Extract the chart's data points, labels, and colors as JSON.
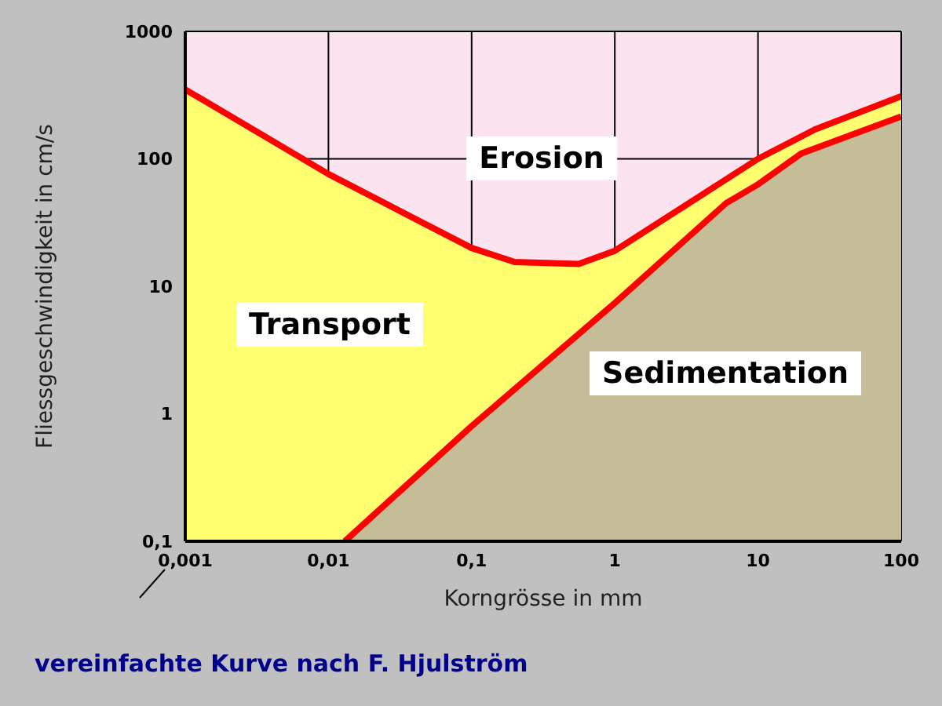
{
  "chart_data": {
    "type": "area",
    "xlabel": "Korngrösse in mm",
    "ylabel": "Fliessgeschwindigkeit in cm/s",
    "series": [
      {
        "color": "#ff0000",
        "x": [
          0.001,
          0.01,
          0.1,
          0.2,
          0.56,
          1,
          10,
          25,
          100
        ],
        "values": [
          350,
          76,
          20,
          15.5,
          15,
          19,
          100,
          170,
          310
        ]
      },
      {
        "color": "#ff0000",
        "x": [
          0.013,
          0.1,
          1,
          6,
          10,
          20,
          100
        ],
        "values": [
          0.1,
          0.8,
          7.4,
          45,
          63,
          110,
          215
        ]
      }
    ],
    "log": "xy",
    "xlim": [
      0.001,
      100
    ],
    "ylim": [
      0.1,
      1000
    ],
    "xticks": [
      {
        "value": 0.001,
        "label": "0,001"
      },
      {
        "value": 0.01,
        "label": "0,01"
      },
      {
        "value": 0.1,
        "label": "0,1"
      },
      1,
      10,
      100
    ],
    "yticks": [
      {
        "value": 0.1,
        "label": "0,1"
      },
      1,
      10,
      100,
      1000
    ],
    "grid": true,
    "legend": false,
    "annotations": [
      "Erosion",
      "Transport",
      "Sedimentation",
      "vereinfachte Kurve nach F. Hjulström"
    ]
  }
}
